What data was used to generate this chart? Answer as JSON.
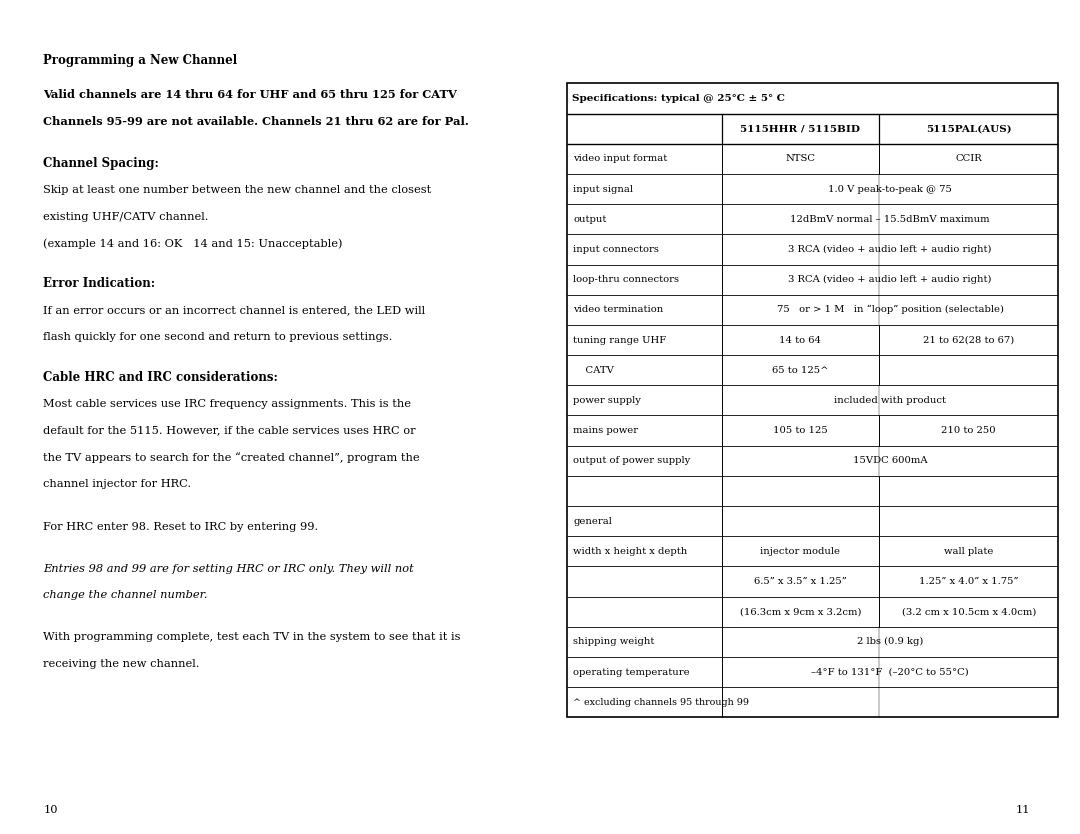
{
  "bg_color": "#ffffff",
  "left_page": {
    "title": "Programming a New Channel",
    "bold_line1": "Valid channels are 14 thru 64 for UHF and 65 thru 125 for CATV",
    "bold_line2": "Channels 95-99 are not available. Channels 21 thru 62 are for Pal.",
    "sections": [
      {
        "heading": "Channel Spacing:",
        "lines": [
          "Skip at least one number between the new channel and the closest",
          "existing UHF/CATV channel.",
          "(example 14 and 16: OK   14 and 15: Unacceptable)"
        ]
      },
      {
        "heading": "Error Indication:",
        "lines": [
          "If an error occurs or an incorrect channel is entered, the LED will",
          "flash quickly for one second and return to previous settings."
        ]
      },
      {
        "heading": "Cable HRC and IRC considerations:",
        "lines": [
          "Most cable services use IRC frequency assignments. This is the",
          "default for the 5115. However, if the cable services uses HRC or",
          "the TV appears to search for the “created channel”, program the",
          "channel injector for HRC."
        ]
      }
    ],
    "para1": "For HRC enter 98. Reset to IRC by entering 99.",
    "italic_lines": [
      "Entries 98 and 99 are for setting HRC or IRC only. They will not",
      "change the channel number."
    ],
    "para2_lines": [
      "With programming complete, test each TV in the system to see that it is",
      "receiving the new channel."
    ],
    "page_num": "10"
  },
  "right_page": {
    "table_title": "Specifications: typical @ 25°C ± 5° C",
    "col_headers": [
      "",
      "5115HHR / 5115BID",
      "5115PAL(AUS)"
    ],
    "rows": [
      {
        "label": "video input format",
        "c2": "NTSC",
        "c3": "CCIR",
        "merged": false
      },
      {
        "label": "input signal",
        "c2": "1.0 V peak-to-peak @ 75",
        "c3": "",
        "merged": true
      },
      {
        "label": "output",
        "c2": "12dBmV normal – 15.5dBmV maximum",
        "c3": "",
        "merged": true
      },
      {
        "label": "input connectors",
        "c2": "3 RCA (video + audio left + audio right)",
        "c3": "",
        "merged": true
      },
      {
        "label": "loop-thru connectors",
        "c2": "3 RCA (video + audio left + audio right)",
        "c3": "",
        "merged": true
      },
      {
        "label": "video termination",
        "c2": "75   or > 1 M   in “loop” position (selectable)",
        "c3": "",
        "merged": true
      },
      {
        "label": "tuning range UHF",
        "c2": "14 to 64",
        "c3": "21 to 62(28 to 67)",
        "merged": false
      },
      {
        "label": "    CATV",
        "c2": "65 to 125^",
        "c3": "",
        "merged": false,
        "c3_empty": true
      },
      {
        "label": "power supply",
        "c2": "included with product",
        "c3": "",
        "merged": true
      },
      {
        "label": "mains power",
        "c2": "105 to 125",
        "c3": "210 to 250",
        "merged": false
      },
      {
        "label": "output of power supply",
        "c2": "15VDC 600mA",
        "c3": "",
        "merged": true
      },
      {
        "label": "",
        "c2": "",
        "c3": "",
        "merged": true,
        "blank": true
      },
      {
        "label": "general",
        "c2": "",
        "c3": "",
        "merged": true,
        "general": true
      },
      {
        "label": "width x height x depth",
        "c2": "injector module",
        "c3": "wall plate",
        "merged": false
      },
      {
        "label": "",
        "c2": "6.5” x 3.5” x 1.25”",
        "c3": "1.25” x 4.0” x 1.75”",
        "merged": false
      },
      {
        "label": "",
        "c2": "(16.3cm x 9cm x 3.2cm)",
        "c3": "(3.2 cm x 10.5cm x 4.0cm)",
        "merged": false
      },
      {
        "label": "shipping weight",
        "c2": "2 lbs (0.9 kg)",
        "c3": "",
        "merged": true
      },
      {
        "label": "operating temperature",
        "c2": "–4°F to 131°F  (–20°C to 55°C)",
        "c3": "",
        "merged": true
      }
    ],
    "footnote": "^ excluding channels 95 through 99",
    "page_num": "11"
  }
}
